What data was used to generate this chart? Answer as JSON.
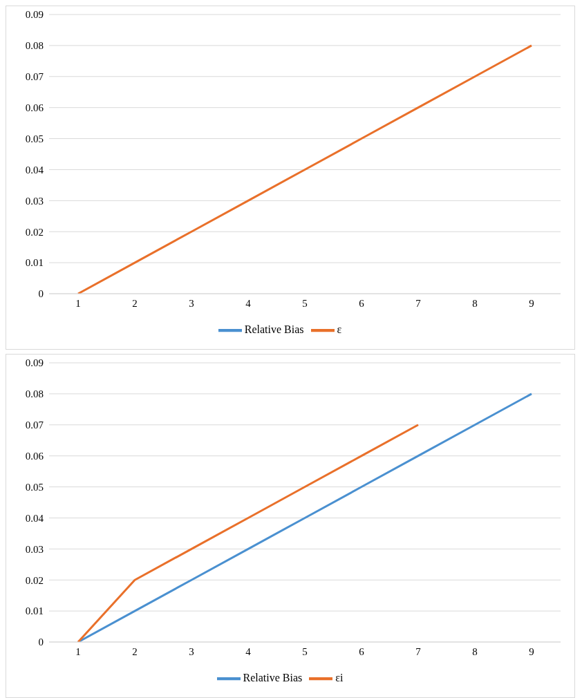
{
  "chart_data": [
    {
      "type": "line",
      "categories": [
        "1",
        "2",
        "3",
        "4",
        "5",
        "6",
        "7",
        "8",
        "9"
      ],
      "series": [
        {
          "name": "Relative Bias",
          "color": "#4a90d0",
          "values": [
            null,
            null,
            null,
            null,
            null,
            null,
            null,
            null,
            null
          ]
        },
        {
          "name": "ε",
          "color": "#e9702a",
          "values": [
            0,
            0.01,
            0.02,
            0.03,
            0.04,
            0.05,
            0.06,
            0.07,
            0.08
          ]
        }
      ],
      "ylim": [
        0,
        0.09
      ],
      "yticks": [
        0,
        0.01,
        0.02,
        0.03,
        0.04,
        0.05,
        0.06,
        0.07,
        0.08,
        0.09
      ],
      "grid": "y",
      "legend": "bottom",
      "marker": "none"
    },
    {
      "type": "line",
      "categories": [
        "1",
        "2",
        "3",
        "4",
        "5",
        "6",
        "7",
        "8",
        "9"
      ],
      "series": [
        {
          "name": "Relative Bias",
          "color": "#4a90d0",
          "values": [
            0,
            0.01,
            0.02,
            0.03,
            0.04,
            0.05,
            0.06,
            0.07,
            0.08
          ]
        },
        {
          "name": "εi",
          "color": "#e9702a",
          "values": [
            0,
            0.02,
            0.03,
            0.04,
            0.05,
            0.06,
            0.07,
            null,
            null
          ]
        }
      ],
      "ylim": [
        0,
        0.09
      ],
      "yticks": [
        0,
        0.01,
        0.02,
        0.03,
        0.04,
        0.05,
        0.06,
        0.07,
        0.08,
        0.09
      ],
      "grid": "y",
      "legend": "bottom",
      "marker": "none"
    }
  ]
}
